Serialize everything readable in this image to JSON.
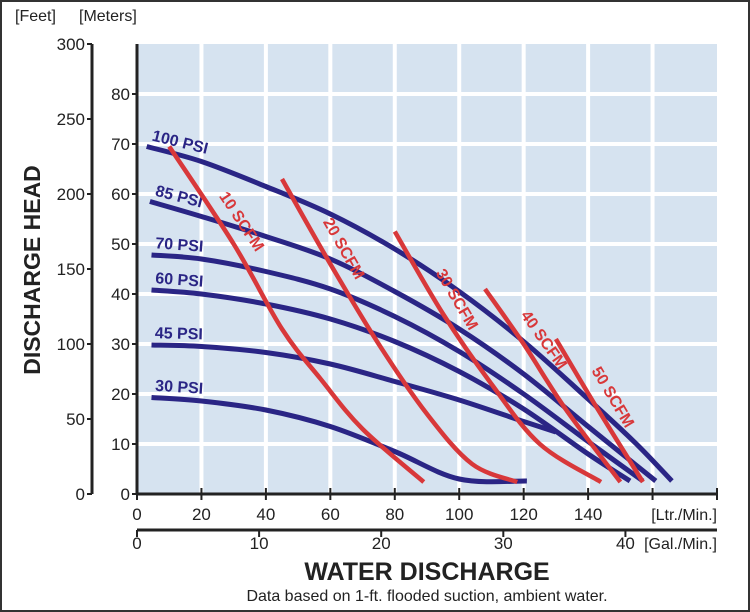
{
  "chart_data": {
    "type": "line",
    "title": "",
    "ylabel": "DISCHARGE HEAD",
    "xlabel": "WATER DISCHARGE",
    "note": "Data based on 1-ft. flooded suction, ambient water.",
    "y_axes": {
      "feet": {
        "unit_label": "[Feet]",
        "ticks": [
          0,
          50,
          100,
          150,
          200,
          250,
          300
        ],
        "range": [
          0,
          300
        ]
      },
      "meters": {
        "unit_label": "[Meters]",
        "ticks": [
          0,
          10,
          20,
          30,
          40,
          50,
          60,
          70,
          80
        ],
        "range": [
          0,
          90
        ]
      }
    },
    "x_axes": {
      "lpm": {
        "unit_label": "[Ltr./Min.]",
        "ticks": [
          0,
          20,
          40,
          60,
          80,
          100,
          120,
          140
        ],
        "range": [
          0,
          180
        ]
      },
      "gpm": {
        "unit_label": "[Gal./Min.]",
        "ticks": [
          0,
          10,
          20,
          30,
          40
        ],
        "range": [
          0,
          47.5
        ]
      }
    },
    "grid": true,
    "colors": {
      "plot_bg": "#d6e3f0",
      "grid": "#ffffff",
      "psi": "#2a2585",
      "scfm": "#d8383a"
    },
    "psi_series": [
      {
        "name": "100 PSI",
        "points": [
          [
            3,
            69.5
          ],
          [
            20,
            66.5
          ],
          [
            40,
            61.5
          ],
          [
            60,
            56
          ],
          [
            80,
            49
          ],
          [
            100,
            40.5
          ],
          [
            120,
            30.5
          ],
          [
            140,
            19
          ],
          [
            155,
            10
          ],
          [
            166,
            2.6
          ]
        ]
      },
      {
        "name": "85 PSI",
        "points": [
          [
            4,
            58.5
          ],
          [
            20,
            55.5
          ],
          [
            40,
            51.5
          ],
          [
            60,
            47
          ],
          [
            80,
            40.5
          ],
          [
            100,
            33
          ],
          [
            120,
            24
          ],
          [
            140,
            13.5
          ],
          [
            161,
            2.6
          ]
        ]
      },
      {
        "name": "70 PSI",
        "points": [
          [
            4.5,
            47.8
          ],
          [
            20,
            47
          ],
          [
            40,
            44.5
          ],
          [
            60,
            41
          ],
          [
            80,
            35.5
          ],
          [
            100,
            28.5
          ],
          [
            120,
            20
          ],
          [
            140,
            10.5
          ],
          [
            157,
            2.6
          ]
        ]
      },
      {
        "name": "60 PSI",
        "points": [
          [
            4.5,
            40.8
          ],
          [
            20,
            40
          ],
          [
            40,
            38
          ],
          [
            60,
            35
          ],
          [
            80,
            30.5
          ],
          [
            100,
            24.5
          ],
          [
            120,
            17
          ],
          [
            140,
            8
          ],
          [
            153,
            2.6
          ]
        ]
      },
      {
        "name": "45 PSI",
        "points": [
          [
            4.5,
            29.8
          ],
          [
            20,
            29.5
          ],
          [
            40,
            28.3
          ],
          [
            60,
            26
          ],
          [
            80,
            22.5
          ],
          [
            100,
            18.8
          ],
          [
            120,
            14.5
          ],
          [
            130,
            12.4
          ]
        ]
      },
      {
        "name": "30 PSI",
        "points": [
          [
            4.5,
            19.3
          ],
          [
            20,
            18.6
          ],
          [
            40,
            16.8
          ],
          [
            60,
            13.5
          ],
          [
            80,
            8.5
          ],
          [
            100,
            3
          ],
          [
            121,
            2.6
          ]
        ]
      }
    ],
    "scfm_series": [
      {
        "name": "10 SCFM",
        "points": [
          [
            10,
            69.5
          ],
          [
            30,
            50
          ],
          [
            45,
            33
          ],
          [
            57,
            23
          ],
          [
            70,
            13
          ],
          [
            89,
            2.4
          ]
        ]
      },
      {
        "name": "20 SCFM",
        "points": [
          [
            45,
            63
          ],
          [
            60,
            46
          ],
          [
            75,
            30
          ],
          [
            90,
            16
          ],
          [
            104,
            6
          ],
          [
            118,
            2.4
          ]
        ]
      },
      {
        "name": "30 SCFM",
        "points": [
          [
            80,
            52.5
          ],
          [
            95,
            36
          ],
          [
            110,
            22
          ],
          [
            125,
            10
          ],
          [
            144,
            2.4
          ]
        ]
      },
      {
        "name": "40 SCFM",
        "points": [
          [
            108,
            41
          ],
          [
            120,
            30
          ],
          [
            133,
            17
          ],
          [
            150,
            2.4
          ]
        ]
      },
      {
        "name": "50 SCFM",
        "points": [
          [
            130,
            31
          ],
          [
            142,
            18
          ],
          [
            157,
            2.4
          ]
        ]
      }
    ]
  }
}
